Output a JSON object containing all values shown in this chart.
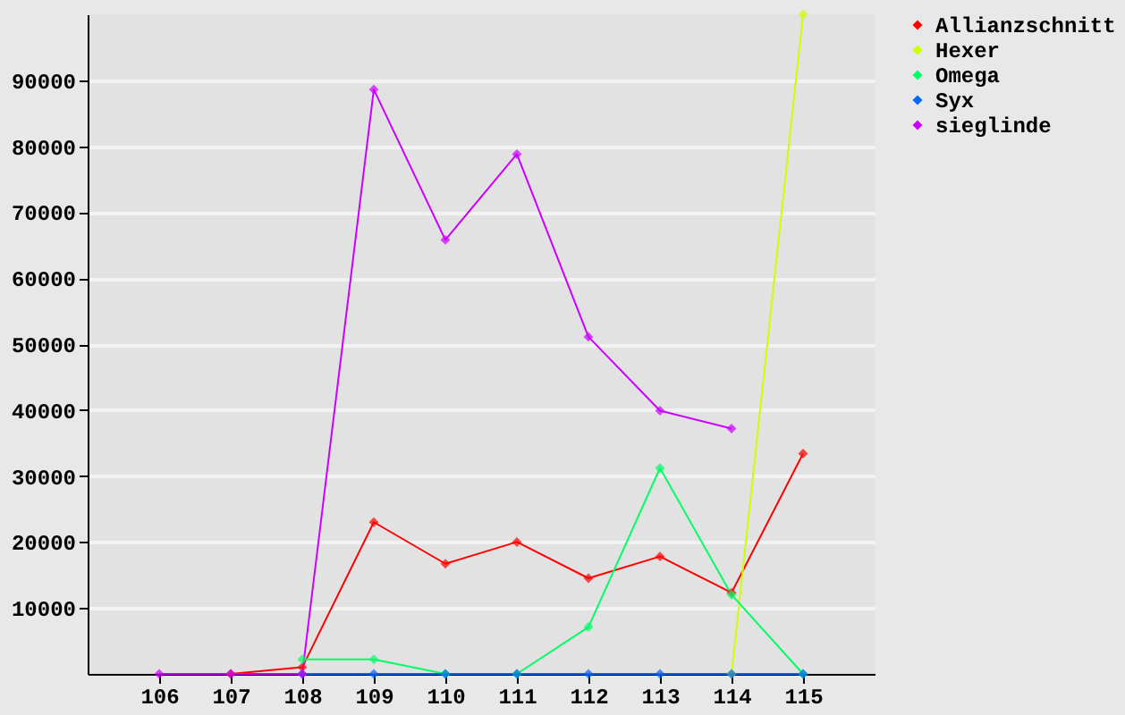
{
  "chart_data": {
    "type": "line",
    "x": [
      106,
      107,
      108,
      109,
      110,
      111,
      112,
      113,
      114,
      115
    ],
    "series": [
      {
        "name": "Allianzschnitt",
        "color": "#ff0000",
        "values": [
          null,
          0,
          1000,
          23000,
          16700,
          20000,
          14500,
          17800,
          12300,
          33400
        ]
      },
      {
        "name": "Hexer",
        "color": "#ccff00",
        "values": [
          null,
          null,
          null,
          null,
          null,
          null,
          null,
          null,
          0,
          100000
        ]
      },
      {
        "name": "Omega",
        "color": "#00ff66",
        "values": [
          null,
          null,
          2200,
          2200,
          0,
          0,
          7100,
          31200,
          12000,
          0
        ]
      },
      {
        "name": "Syx",
        "color": "#0066ff",
        "values": [
          null,
          null,
          0,
          0,
          0,
          0,
          0,
          0,
          0,
          0
        ]
      },
      {
        "name": "sieglinde",
        "color": "#cc00ff",
        "values": [
          0,
          0,
          0,
          88600,
          65800,
          78800,
          51100,
          39900,
          37200,
          null
        ]
      }
    ],
    "xlim": [
      105,
      116
    ],
    "xticks": [
      106,
      107,
      108,
      109,
      110,
      111,
      112,
      113,
      114,
      115
    ],
    "ylim": [
      0,
      100000
    ],
    "yticks": [
      10000,
      20000,
      30000,
      40000,
      50000,
      60000,
      70000,
      80000,
      90000
    ],
    "grid": "y",
    "legend": "right",
    "marker": "diamond",
    "line_style": "solid"
  }
}
